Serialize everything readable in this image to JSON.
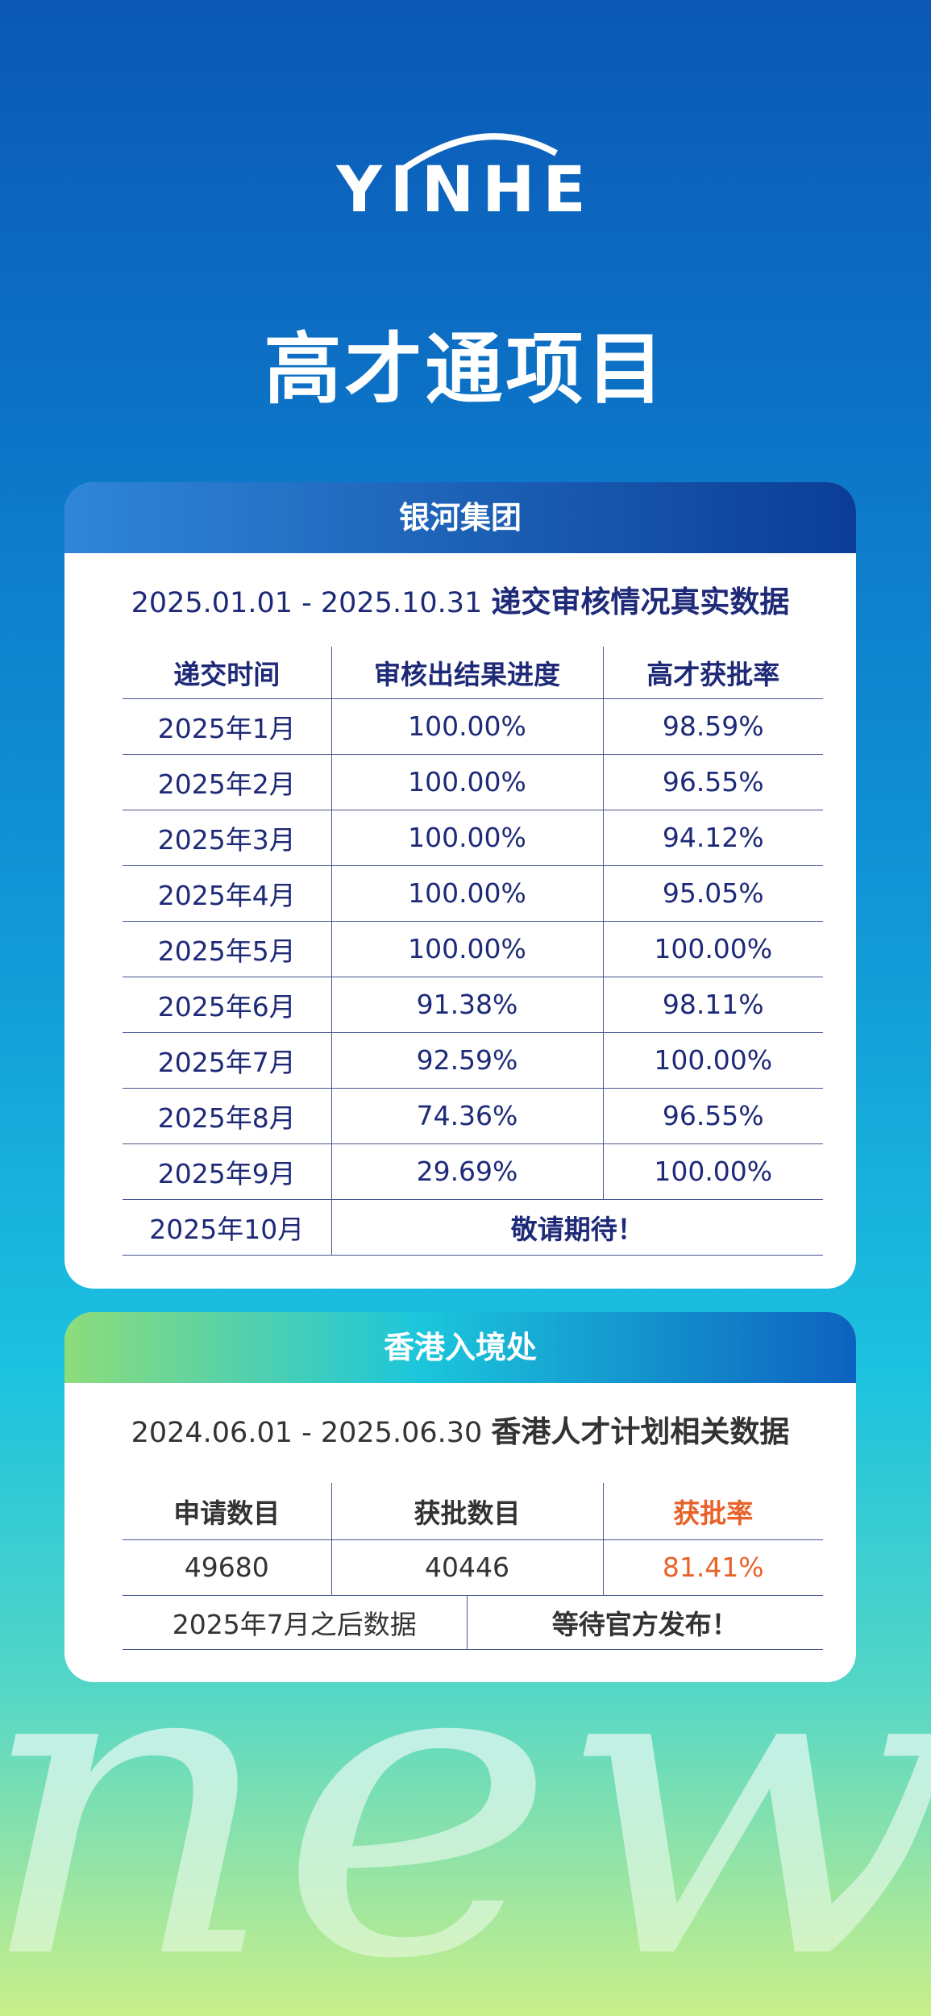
{
  "logo": "YINHE",
  "title": "高才通项目",
  "card1": {
    "header": "银河集团",
    "subtitle_dates": "2025.01.01 - 2025.10.31",
    "subtitle_text": "递交审核情况真实数据",
    "table": {
      "headers": [
        "递交时间",
        "审核出结果进度",
        "高才获批率"
      ],
      "rows": [
        [
          "2025年1月",
          "100.00%",
          "98.59%"
        ],
        [
          "2025年2月",
          "100.00%",
          "96.55%"
        ],
        [
          "2025年3月",
          "100.00%",
          "94.12%"
        ],
        [
          "2025年4月",
          "100.00%",
          "95.05%"
        ],
        [
          "2025年5月",
          "100.00%",
          "100.00%"
        ],
        [
          "2025年6月",
          "91.38%",
          "98.11%"
        ],
        [
          "2025年7月",
          "92.59%",
          "100.00%"
        ],
        [
          "2025年8月",
          "74.36%",
          "96.55%"
        ],
        [
          "2025年9月",
          "29.69%",
          "100.00%"
        ]
      ],
      "last_row": [
        "2025年10月",
        "敬请期待！"
      ]
    }
  },
  "card2": {
    "header": "香港入境处",
    "subtitle_dates": "2024.06.01 - 2025.06.30",
    "subtitle_text": "香港人才计划相关数据",
    "table": {
      "headers": [
        "申请数目",
        "获批数目",
        "获批率"
      ],
      "row": [
        "49680",
        "40446",
        "81.41%"
      ],
      "footer": [
        "2025年7月之后数据",
        "等待官方发布！"
      ]
    }
  },
  "decoration": "new"
}
